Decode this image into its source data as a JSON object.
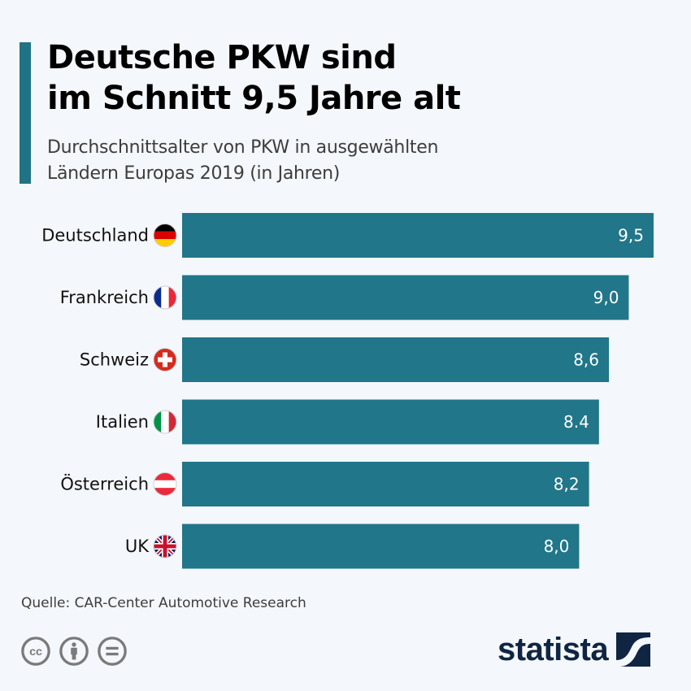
{
  "header": {
    "title_line1": "Deutsche PKW sind",
    "title_line2": "im Schnitt 9,5 Jahre alt",
    "subtitle_line1": "Durchschnittsalter von PKW in ausgewählten",
    "subtitle_line2": "Ländern Europas 2019 (in Jahren)"
  },
  "colors": {
    "accent": "#1f7385",
    "bar": "#217689",
    "background": "#f4f7fb",
    "logo": "#0f2542"
  },
  "chart_data": {
    "type": "bar",
    "orientation": "horizontal",
    "title": "Deutsche PKW sind im Schnitt 9,5 Jahre alt",
    "subtitle": "Durchschnittsalter von PKW in ausgewählten Ländern Europas 2019 (in Jahren)",
    "xlabel": "",
    "ylabel": "",
    "xlim": [
      0,
      9.5
    ],
    "grid": false,
    "categories": [
      "Deutschland",
      "Frankreich",
      "Schweiz",
      "Italien",
      "Österreich",
      "UK"
    ],
    "values": [
      9.5,
      9.0,
      8.6,
      8.4,
      8.2,
      8.0
    ],
    "value_labels": [
      "9,5",
      "9,0",
      "8,6",
      "8.4",
      "8,2",
      "8,0"
    ],
    "flags": [
      "germany-flag",
      "france-flag",
      "switzerland-flag",
      "italy-flag",
      "austria-flag",
      "uk-flag"
    ]
  },
  "footer": {
    "source": "Quelle: CAR-Center Automotive Research",
    "license_icons": [
      "cc-icon",
      "attribution-icon",
      "no-derivatives-icon"
    ],
    "logo_text": "statista"
  }
}
